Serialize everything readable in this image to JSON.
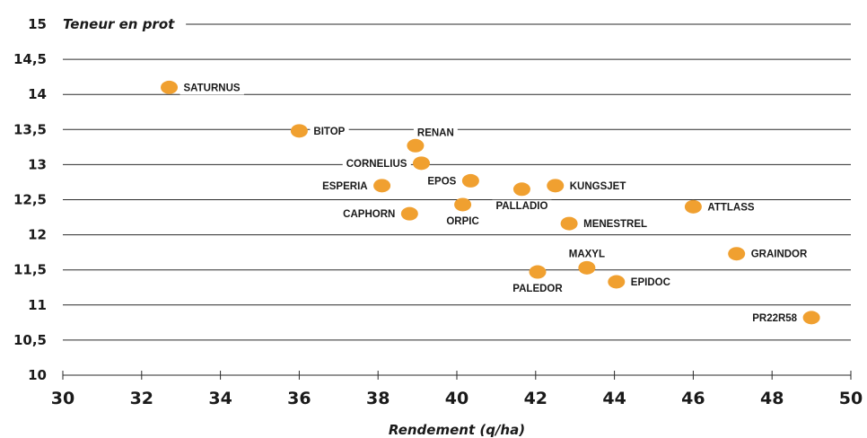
{
  "chart_data": {
    "type": "scatter",
    "ylabel": "Teneur en prot",
    "xlabel": "Rendement (q/ha)",
    "xlim": [
      30,
      50
    ],
    "ylim": [
      10,
      15
    ],
    "xticks": [
      30,
      32,
      34,
      36,
      38,
      40,
      42,
      44,
      46,
      48,
      50
    ],
    "yticks": [
      "10",
      "10,5",
      "11",
      "11,5",
      "12",
      "12,5",
      "13",
      "13,5",
      "14",
      "14,5",
      "15"
    ],
    "grid": true,
    "marker_color": "#F0A030",
    "points": [
      {
        "name": "SATURNUS",
        "x": 32.7,
        "y": 14.1,
        "label_pos": "right"
      },
      {
        "name": "BITOP",
        "x": 36.0,
        "y": 13.48,
        "label_pos": "right"
      },
      {
        "name": "RENAN",
        "x": 38.95,
        "y": 13.27,
        "label_pos": "above-right"
      },
      {
        "name": "CORNELIUS",
        "x": 39.1,
        "y": 13.02,
        "label_pos": "left"
      },
      {
        "name": "ESPERIA",
        "x": 38.1,
        "y": 12.7,
        "label_pos": "left"
      },
      {
        "name": "EPOS",
        "x": 40.35,
        "y": 12.77,
        "label_pos": "left"
      },
      {
        "name": "CAPHORN",
        "x": 38.8,
        "y": 12.3,
        "label_pos": "left"
      },
      {
        "name": "ORPIC",
        "x": 40.15,
        "y": 12.43,
        "label_pos": "below"
      },
      {
        "name": "PALLADIO",
        "x": 41.65,
        "y": 12.65,
        "label_pos": "below"
      },
      {
        "name": "KUNGSJET",
        "x": 42.5,
        "y": 12.7,
        "label_pos": "right"
      },
      {
        "name": "MENESTREL",
        "x": 42.85,
        "y": 12.16,
        "label_pos": "right"
      },
      {
        "name": "ATTLASS",
        "x": 46.0,
        "y": 12.4,
        "label_pos": "right"
      },
      {
        "name": "MAXYL",
        "x": 43.3,
        "y": 11.53,
        "label_pos": "above"
      },
      {
        "name": "PALEDOR",
        "x": 42.05,
        "y": 11.47,
        "label_pos": "below"
      },
      {
        "name": "EPIDOC",
        "x": 44.05,
        "y": 11.33,
        "label_pos": "right"
      },
      {
        "name": "GRAINDOR",
        "x": 47.1,
        "y": 11.73,
        "label_pos": "right"
      },
      {
        "name": "PR22R58",
        "x": 49.0,
        "y": 10.82,
        "label_pos": "left"
      }
    ]
  }
}
